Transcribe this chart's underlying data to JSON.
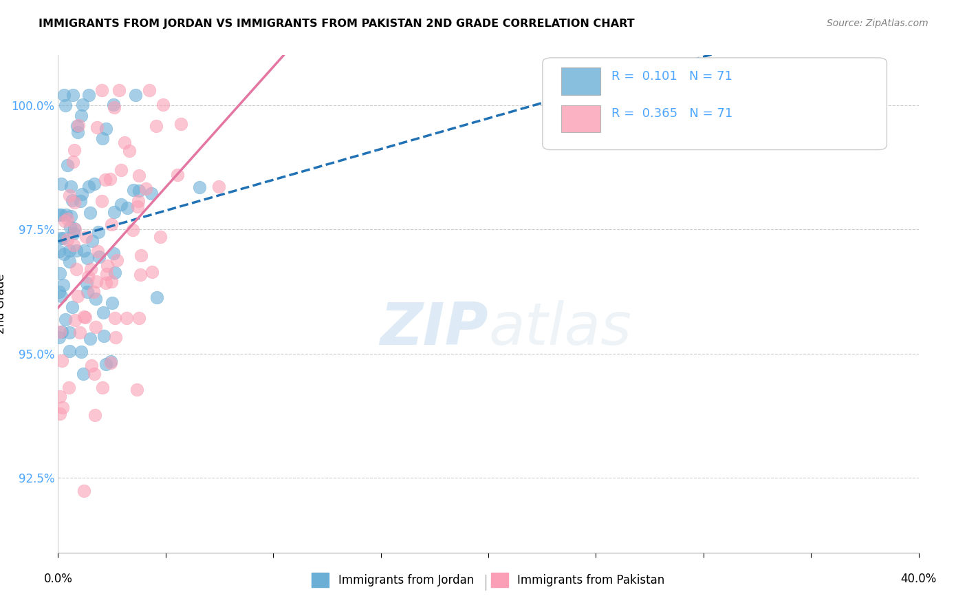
{
  "title": "IMMIGRANTS FROM JORDAN VS IMMIGRANTS FROM PAKISTAN 2ND GRADE CORRELATION CHART",
  "source": "Source: ZipAtlas.com",
  "ylabel": "2nd Grade",
  "ytick_labels": [
    "92.5%",
    "95.0%",
    "97.5%",
    "100.0%"
  ],
  "ytick_values": [
    0.925,
    0.95,
    0.975,
    1.0
  ],
  "legend_label1": "Immigrants from Jordan",
  "legend_label2": "Immigrants from Pakistan",
  "R1": 0.101,
  "R2": 0.365,
  "N1": 71,
  "N2": 71,
  "blue_color": "#6baed6",
  "pink_color": "#fa9fb5",
  "blue_line_color": "#2171b5",
  "pink_line_color": "#e377a2",
  "xmin": 0.0,
  "xmax": 0.4,
  "ymin": 0.91,
  "ymax": 1.01
}
